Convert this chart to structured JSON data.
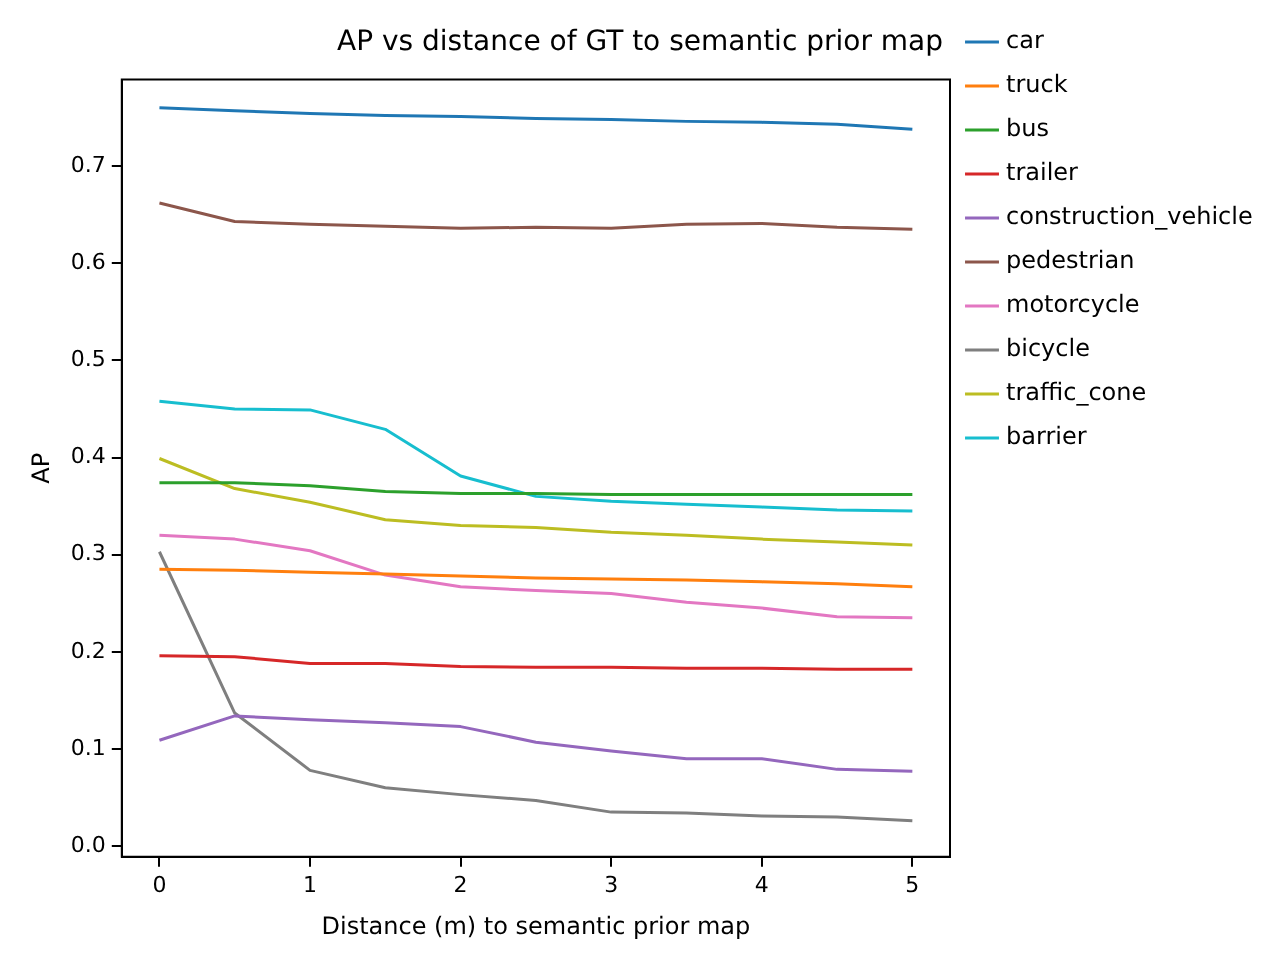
{
  "chart_data": {
    "type": "line",
    "title": "AP vs distance of GT to semantic prior map",
    "xlabel": "Distance (m) to semantic prior map",
    "ylabel": "AP",
    "x": [
      0,
      0.5,
      1,
      1.5,
      2,
      2.5,
      3,
      3.5,
      4,
      4.5,
      5
    ],
    "series": [
      {
        "name": "car",
        "color": "#1f77b4",
        "values": [
          0.76,
          0.757,
          0.754,
          0.752,
          0.751,
          0.749,
          0.748,
          0.746,
          0.745,
          0.743,
          0.738
        ]
      },
      {
        "name": "truck",
        "color": "#ff7f0e",
        "values": [
          0.285,
          0.284,
          0.282,
          0.28,
          0.278,
          0.276,
          0.275,
          0.274,
          0.272,
          0.27,
          0.267
        ]
      },
      {
        "name": "bus",
        "color": "#2ca02c",
        "values": [
          0.374,
          0.374,
          0.371,
          0.365,
          0.363,
          0.363,
          0.362,
          0.362,
          0.362,
          0.362,
          0.362
        ]
      },
      {
        "name": "trailer",
        "color": "#d62728",
        "values": [
          0.196,
          0.195,
          0.188,
          0.188,
          0.185,
          0.184,
          0.184,
          0.183,
          0.183,
          0.182,
          0.182
        ]
      },
      {
        "name": "construction_vehicle",
        "color": "#9467bd",
        "values": [
          0.109,
          0.134,
          0.13,
          0.127,
          0.123,
          0.107,
          0.098,
          0.09,
          0.09,
          0.079,
          0.077
        ]
      },
      {
        "name": "pedestrian",
        "color": "#8c564b",
        "values": [
          0.662,
          0.643,
          0.64,
          0.638,
          0.636,
          0.637,
          0.636,
          0.64,
          0.641,
          0.637,
          0.635
        ]
      },
      {
        "name": "motorcycle",
        "color": "#e377c2",
        "values": [
          0.32,
          0.316,
          0.304,
          0.279,
          0.267,
          0.263,
          0.26,
          0.251,
          0.245,
          0.236,
          0.235
        ]
      },
      {
        "name": "bicycle",
        "color": "#7f7f7f",
        "values": [
          0.303,
          0.137,
          0.078,
          0.06,
          0.053,
          0.047,
          0.035,
          0.034,
          0.031,
          0.03,
          0.026
        ]
      },
      {
        "name": "traffic_cone",
        "color": "#bcbd22",
        "values": [
          0.399,
          0.368,
          0.354,
          0.336,
          0.33,
          0.328,
          0.323,
          0.32,
          0.316,
          0.313,
          0.31
        ]
      },
      {
        "name": "barrier",
        "color": "#17becf",
        "values": [
          0.458,
          0.45,
          0.449,
          0.429,
          0.381,
          0.36,
          0.355,
          0.352,
          0.349,
          0.346,
          0.345
        ]
      }
    ],
    "xlim": [
      -0.25,
      5.25
    ],
    "xticks": [
      0,
      1,
      2,
      3,
      4,
      5
    ],
    "ylim": [
      -0.011,
      0.789
    ],
    "yticks": [
      {
        "value": 0,
        "label": "0.0"
      },
      {
        "value": 0.1,
        "label": "0.1"
      },
      {
        "value": 0.2,
        "label": "0.2"
      },
      {
        "value": 0.3,
        "label": "0.3"
      },
      {
        "value": 0.4,
        "label": "0.4"
      },
      {
        "value": 0.5,
        "label": "0.5"
      },
      {
        "value": 0.6,
        "label": "0.6"
      },
      {
        "value": 0.7,
        "label": "0.7"
      }
    ],
    "grid": false,
    "legend": "right",
    "marker": "none",
    "line_style": "solid"
  }
}
